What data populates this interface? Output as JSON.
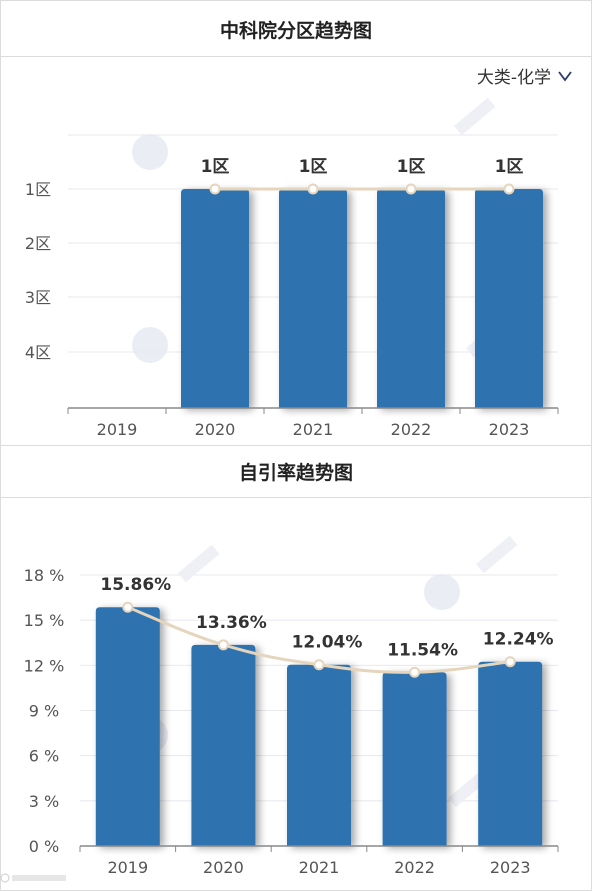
{
  "charts": [
    {
      "title": "中科院分区趋势图",
      "dropdown_label": "大类-化学"
    },
    {
      "title": "自引率趋势图"
    }
  ],
  "colors": {
    "bar": "#2d72b0",
    "line": "#e5d5bd",
    "grid": "#e8e8ee",
    "axis": "#888888",
    "tick_text": "#555555",
    "data_label": "#333333"
  },
  "chart_data": [
    {
      "type": "bar",
      "title": "中科院分区趋势图",
      "categories": [
        "2019",
        "2020",
        "2021",
        "2022",
        "2023"
      ],
      "values": [
        null,
        1,
        1,
        1,
        1
      ],
      "data_labels": [
        "",
        "1区",
        "1区",
        "1区",
        "1区"
      ],
      "y_ticks": [
        "1区",
        "2区",
        "3区",
        "4区"
      ],
      "y_inverted": true,
      "overlay_line": true,
      "grid": true
    },
    {
      "type": "bar",
      "title": "自引率趋势图",
      "categories": [
        "2019",
        "2020",
        "2021",
        "2022",
        "2023"
      ],
      "values": [
        15.86,
        13.36,
        12.04,
        11.54,
        12.24
      ],
      "data_labels": [
        "15.86%",
        "13.36%",
        "12.04%",
        "11.54%",
        "12.24%"
      ],
      "y_ticks": [
        "0 %",
        "3 %",
        "6 %",
        "9 %",
        "12 %",
        "15 %",
        "18 %"
      ],
      "ylim": [
        0,
        18
      ],
      "overlay_line": true,
      "grid": true
    }
  ]
}
